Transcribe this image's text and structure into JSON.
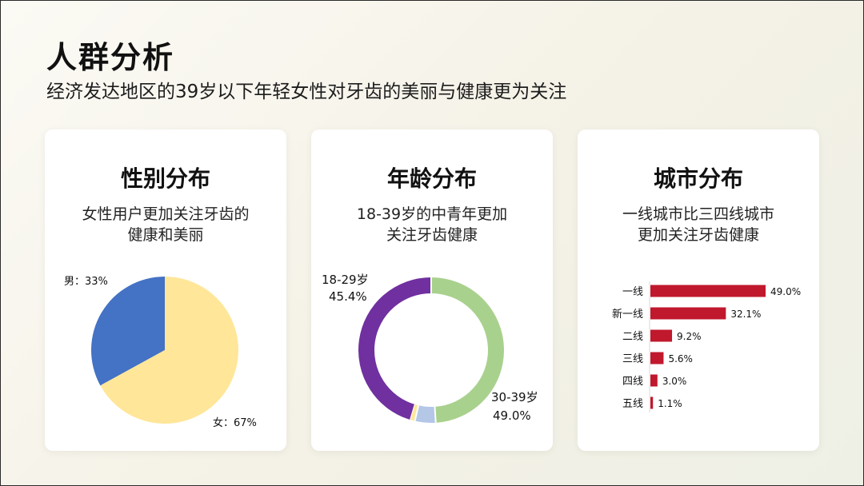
{
  "header": {
    "title": "人群分析",
    "subtitle": "经济发达地区的39岁以下年轻女性对牙齿的美丽与健康更为关注"
  },
  "cards": [
    {
      "title": "性别分布",
      "description": "女性用户更加关注牙齿的\n健康和美丽"
    },
    {
      "title": "年龄分布",
      "description": "18-39岁的中青年更加\n关注牙齿健康"
    },
    {
      "title": "城市分布",
      "description": "一线城市比三四线城市\n更加关注牙齿健康"
    }
  ],
  "chart_data": [
    {
      "type": "pie",
      "categories": [
        "男",
        "女"
      ],
      "values": [
        33,
        67
      ],
      "labels": [
        "男：33%",
        "女：67%"
      ],
      "colors": [
        "#4472c4",
        "#ffe699"
      ]
    },
    {
      "type": "pie",
      "variant": "donut",
      "categories": [
        "18-29岁",
        "30-39岁",
        "other-1",
        "other-2"
      ],
      "values": [
        45.4,
        49.0,
        4.6,
        1.0
      ],
      "labels": [
        {
          "name": "18-29岁",
          "value": "45.4%"
        },
        {
          "name": "30-39岁",
          "value": "49.0%"
        }
      ],
      "colors": [
        "#7030a0",
        "#a9d18e",
        "#b4c7e7",
        "#ffe699"
      ]
    },
    {
      "type": "bar",
      "orientation": "horizontal",
      "categories": [
        "一线",
        "新一线",
        "二线",
        "三线",
        "四线",
        "五线"
      ],
      "values": [
        49.0,
        32.1,
        9.2,
        5.6,
        3.0,
        1.1
      ],
      "value_labels": [
        "49.0%",
        "32.1%",
        "9.2%",
        "5.6%",
        "3.0%",
        "1.1%"
      ],
      "color": "#c0182d",
      "xlim": [
        0,
        49.0
      ]
    }
  ]
}
